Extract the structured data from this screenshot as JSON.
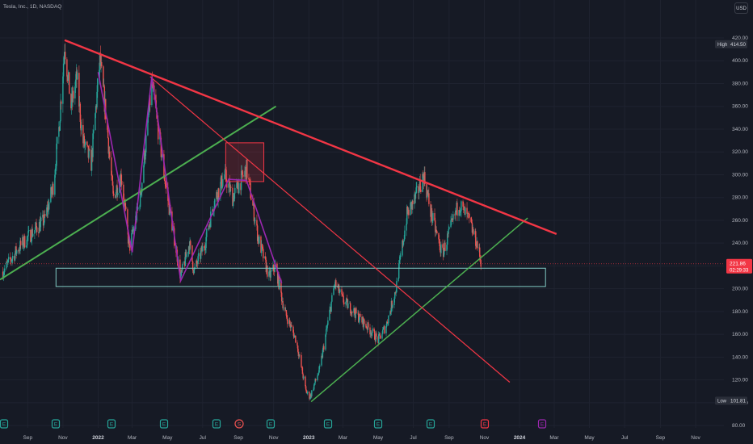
{
  "header": {
    "symbol_line": "Tesla, Inc., 1D, NASDAQ"
  },
  "currency_button": {
    "label": "USD"
  },
  "badges": {
    "high": {
      "label": "High",
      "value": "414.50"
    },
    "low": {
      "label": "Low",
      "value": "101.81"
    },
    "current": {
      "price": "221.86",
      "countdown": "02:29:33"
    }
  },
  "event_markers": [
    {
      "label": "E",
      "kind": "earnings",
      "color": "#26a69a"
    },
    {
      "label": "E",
      "kind": "earnings",
      "color": "#26a69a"
    },
    {
      "label": "E",
      "kind": "earnings",
      "color": "#26a69a"
    },
    {
      "label": "E",
      "kind": "earnings",
      "color": "#26a69a"
    },
    {
      "label": "E",
      "kind": "earnings",
      "color": "#26a69a"
    },
    {
      "label": "S",
      "kind": "split",
      "color": "#ef5350"
    },
    {
      "label": "E",
      "kind": "earnings",
      "color": "#26a69a"
    },
    {
      "label": "E",
      "kind": "earnings",
      "color": "#26a69a"
    },
    {
      "label": "E",
      "kind": "earnings",
      "color": "#26a69a"
    },
    {
      "label": "E",
      "kind": "earnings",
      "color": "#26a69a"
    },
    {
      "label": "E",
      "kind": "earnings",
      "color": "#f23645"
    },
    {
      "label": "E",
      "kind": "earnings-upcoming",
      "color": "#9c27b0"
    }
  ],
  "chart_data": {
    "type": "candlestick",
    "y_axis": {
      "ticks": [
        80,
        100,
        120,
        140,
        160,
        180,
        200,
        220,
        240,
        260,
        280,
        300,
        320,
        340,
        360,
        380,
        400,
        420
      ],
      "tick_labels": [
        "80.00",
        "100.00",
        "120.00",
        "140.00",
        "160.00",
        "180.00",
        "200.00",
        "220.00",
        "240.00",
        "260.00",
        "280.00",
        "300.00",
        "320.00",
        "340.00",
        "360.00",
        "380.00",
        "400.00",
        "420.00"
      ],
      "range": [
        78,
        432
      ]
    },
    "x_axis": {
      "labels": [
        "Sep",
        "Nov",
        "2022",
        "Mar",
        "May",
        "Jul",
        "Sep",
        "Nov",
        "2023",
        "Mar",
        "May",
        "Jul",
        "Sep",
        "Nov",
        "2024",
        "Mar",
        "May",
        "Jul",
        "Sep",
        "Nov"
      ],
      "dates": [
        "2021-09-01",
        "2021-11-01",
        "2022-01-01",
        "2022-03-01",
        "2022-05-01",
        "2022-07-01",
        "2022-09-01",
        "2022-11-01",
        "2023-01-01",
        "2023-03-01",
        "2023-05-01",
        "2023-07-01",
        "2023-09-01",
        "2023-11-01",
        "2024-01-01",
        "2024-03-01",
        "2024-05-01",
        "2024-07-01",
        "2024-09-01",
        "2024-11-01"
      ],
      "bold_labels": [
        "2022",
        "2023",
        "2024"
      ],
      "range": [
        "2021-07-15",
        "2024-12-20"
      ]
    },
    "price_path": [
      [
        "2021-07-20",
        215
      ],
      [
        "2021-08-15",
        235
      ],
      [
        "2021-09-10",
        250
      ],
      [
        "2021-09-30",
        260
      ],
      [
        "2021-10-15",
        290
      ],
      [
        "2021-10-25",
        340
      ],
      [
        "2021-11-04",
        414
      ],
      [
        "2021-11-15",
        360
      ],
      [
        "2021-11-25",
        385
      ],
      [
        "2021-12-05",
        330
      ],
      [
        "2021-12-20",
        310
      ],
      [
        "2022-01-04",
        400
      ],
      [
        "2022-01-15",
        350
      ],
      [
        "2022-01-27",
        280
      ],
      [
        "2022-02-10",
        300
      ],
      [
        "2022-02-24",
        235
      ],
      [
        "2022-03-15",
        280
      ],
      [
        "2022-04-04",
        380
      ],
      [
        "2022-04-15",
        340
      ],
      [
        "2022-04-28",
        290
      ],
      [
        "2022-05-24",
        210
      ],
      [
        "2022-06-08",
        240
      ],
      [
        "2022-06-16",
        215
      ],
      [
        "2022-07-05",
        240
      ],
      [
        "2022-07-20",
        275
      ],
      [
        "2022-08-08",
        300
      ],
      [
        "2022-08-22",
        280
      ],
      [
        "2022-09-15",
        305
      ],
      [
        "2022-10-05",
        245
      ],
      [
        "2022-10-24",
        210
      ],
      [
        "2022-11-04",
        220
      ],
      [
        "2022-11-20",
        180
      ],
      [
        "2022-12-10",
        155
      ],
      [
        "2022-12-27",
        110
      ],
      [
        "2023-01-03",
        105
      ],
      [
        "2023-01-20",
        130
      ],
      [
        "2023-02-15",
        205
      ],
      [
        "2023-03-01",
        190
      ],
      [
        "2023-03-20",
        180
      ],
      [
        "2023-04-15",
        165
      ],
      [
        "2023-05-01",
        155
      ],
      [
        "2023-05-15",
        168
      ],
      [
        "2023-06-01",
        200
      ],
      [
        "2023-06-20",
        265
      ],
      [
        "2023-07-05",
        280
      ],
      [
        "2023-07-19",
        300
      ],
      [
        "2023-08-01",
        265
      ],
      [
        "2023-08-20",
        230
      ],
      [
        "2023-09-05",
        255
      ],
      [
        "2023-09-18",
        275
      ],
      [
        "2023-10-05",
        260
      ],
      [
        "2023-10-19",
        240
      ],
      [
        "2023-10-27",
        222
      ]
    ],
    "drawings": {
      "descending_resistance": {
        "color": "#f23645",
        "points": [
          [
            "2021-11-04",
            418
          ],
          [
            "2024-03-05",
            248
          ]
        ]
      },
      "descending_inner": {
        "color": "#f23645",
        "points": [
          [
            "2022-04-01",
            386
          ],
          [
            "2023-12-15",
            118
          ]
        ]
      },
      "rising_support_2021": {
        "color": "#4caf50",
        "points": [
          [
            "2021-07-15",
            208
          ],
          [
            "2022-11-05",
            360
          ]
        ]
      },
      "rising_support_2023": {
        "color": "#4caf50",
        "points": [
          [
            "2023-01-05",
            101
          ],
          [
            "2024-01-15",
            262
          ]
        ]
      },
      "zigzag": {
        "color": "#9c27b0",
        "points": [
          [
            "2022-01-01",
            390
          ],
          [
            "2022-03-01",
            232
          ],
          [
            "2022-04-04",
            386
          ],
          [
            "2022-05-24",
            207
          ],
          [
            "2022-08-15",
            296
          ],
          [
            "2022-09-15",
            295
          ],
          [
            "2022-11-15",
            205
          ]
        ]
      },
      "support_zone": {
        "color": "#26a69a",
        "top": 218,
        "bottom": 202,
        "from": "2021-10-20",
        "to": "2024-02-15"
      },
      "resistance_box": {
        "color": "#f23645",
        "top": 328,
        "bottom": 294,
        "from": "2022-08-10",
        "to": "2022-10-15"
      }
    }
  }
}
